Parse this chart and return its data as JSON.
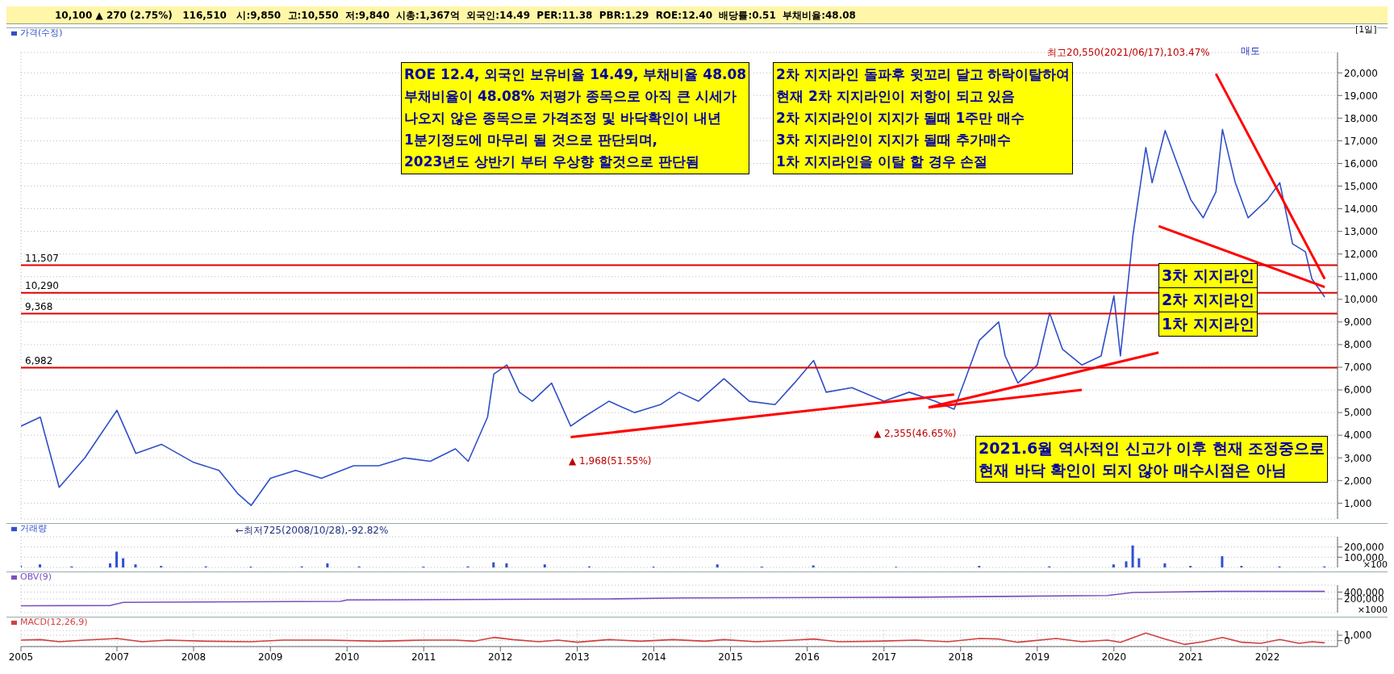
{
  "chart_data": [
    {
      "type": "line",
      "title": "10,100 ▲ 270 (2.75%)   116,510   시:9,850  고:10,550  저:9,840  시총:1,367억  외국인:14.49  PER:11.38  PBR:1.29  ROE:12.40  배당률:0.51  부채비율:48.08",
      "xlim": [
        "2005-10",
        "2022-12"
      ],
      "ylim": [
        300,
        20900
      ],
      "yticks": [
        {
          "value": 1000,
          "label": "1,000"
        },
        {
          "value": 2000,
          "label": "2,000"
        },
        {
          "value": 3000,
          "label": "3,000"
        },
        {
          "value": 4000,
          "label": "4,000"
        },
        {
          "value": 5000,
          "label": "5,000"
        },
        {
          "value": 6000,
          "label": "6,000"
        },
        {
          "value": 7000,
          "label": "7,000"
        },
        {
          "value": 8000,
          "label": "8,000"
        },
        {
          "value": 9000,
          "label": "9,000"
        },
        {
          "value": 10000,
          "label": "10,000"
        },
        {
          "value": 11000,
          "label": "11,000"
        },
        {
          "value": 12000,
          "label": "12,000"
        },
        {
          "value": 13000,
          "label": "13,000"
        },
        {
          "value": 14000,
          "label": "14,000"
        },
        {
          "value": 15000,
          "label": "15,000"
        },
        {
          "value": 16000,
          "label": "16,000"
        },
        {
          "value": 17000,
          "label": "17,000"
        },
        {
          "value": 18000,
          "label": "18,000"
        },
        {
          "value": 19000,
          "label": "19,000"
        },
        {
          "value": 20000,
          "label": "20,000"
        }
      ],
      "tick_labels": "y",
      "grid": true,
      "legend": "top left",
      "series": [
        {
          "name": "가격(수정)",
          "color": "#2f4fc8",
          "x": [
            "2005-10",
            "2006-01",
            "2006-04",
            "2006-08",
            "2007-01",
            "2007-04",
            "2007-08",
            "2008-01",
            "2008-05",
            "2008-08",
            "2008-10",
            "2009-01",
            "2009-05",
            "2009-09",
            "2010-02",
            "2010-06",
            "2010-10",
            "2011-02",
            "2011-06",
            "2011-08",
            "2011-11",
            "2011-12",
            "2012-02",
            "2012-04",
            "2012-06",
            "2012-09",
            "2012-12",
            "2013-02",
            "2013-06",
            "2013-10",
            "2014-02",
            "2014-05",
            "2014-08",
            "2014-12",
            "2015-04",
            "2015-08",
            "2015-11",
            "2016-02",
            "2016-04",
            "2016-08",
            "2017-01",
            "2017-05",
            "2017-09",
            "2017-12",
            "2018-02",
            "2018-04",
            "2018-07",
            "2018-08",
            "2018-10",
            "2019-01",
            "2019-03",
            "2019-05",
            "2019-08",
            "2019-11",
            "2020-01",
            "2020-02",
            "2020-04",
            "2020-06",
            "2020-07",
            "2020-09",
            "2020-11",
            "2021-01",
            "2021-03",
            "2021-05",
            "2021-06",
            "2021-08",
            "2021-10",
            "2022-01",
            "2022-03",
            "2022-05",
            "2022-07",
            "2022-08",
            "2022-10"
          ],
          "values": [
            4400,
            4800,
            1700,
            3000,
            5100,
            3200,
            3600,
            2800,
            2450,
            1400,
            900,
            2100,
            2450,
            2100,
            2650,
            2650,
            3000,
            2850,
            3400,
            2850,
            4800,
            6700,
            7100,
            5900,
            5500,
            6300,
            4400,
            4800,
            5500,
            5000,
            5350,
            5900,
            5500,
            6500,
            5500,
            5350,
            6300,
            7300,
            5900,
            6100,
            5500,
            5900,
            5500,
            5150,
            6700,
            8200,
            9000,
            7500,
            6300,
            7100,
            9400,
            7800,
            7100,
            7500,
            10150,
            7500,
            12850,
            16700,
            15150,
            17450,
            15900,
            14400,
            13600,
            14750,
            17500,
            15150,
            13600,
            14400,
            15150,
            12450,
            12100,
            10900,
            10100
          ]
        },
        {
          "type": "line",
          "color": "#ff0000",
          "x": [
            "2012-12",
            "2017-12"
          ],
          "values": [
            3920,
            5800
          ]
        },
        {
          "type": "line",
          "color": "#ff0000",
          "x": [
            "2017-08",
            "2020-08"
          ],
          "values": [
            5230,
            7650
          ]
        },
        {
          "type": "line",
          "color": "#ff0000",
          "x": [
            "2017-08",
            "2019-08"
          ],
          "values": [
            5230,
            6000
          ]
        },
        {
          "type": "line",
          "color": "#ff0000",
          "x": [
            "2021-05",
            "2022-10"
          ],
          "values": [
            19960,
            10900
          ]
        },
        {
          "type": "line",
          "color": "#ff0000",
          "x": [
            "2020-08",
            "2022-10"
          ],
          "values": [
            13230,
            10540
          ]
        }
      ],
      "ref_lines": [
        {
          "axis": "y",
          "value": 11507,
          "label": "11,507",
          "color": "#e00000"
        },
        {
          "axis": "y",
          "value": 10290,
          "label": "10,290",
          "color": "#e00000"
        },
        {
          "axis": "y",
          "value": 9368,
          "label": "9,368",
          "color": "#e00000"
        },
        {
          "axis": "y",
          "value": 6982,
          "label": "6,982",
          "color": "#e00000"
        }
      ],
      "annotations": [
        "[1일]",
        "ROE 12.4, 외국인 보유비율 14.49, 부채비율 48.08\n부채비율이 48.08% 저평가 종목으로 아직 큰 시세가\n나오지 않은 종목으로 가격조정 및 바닥확인이 내년\n1분기정도에 마무리 될 것으로 판단되며,\n2023년도 상반기 부터 우상향 할것으로 판단됨",
        "2차 지지라인 돌파후 윗꼬리 달고 하락이탈하여\n현재 2차 지지라인이 저항이 되고 있음\n2차 지지라인이 지지가 될때 1주만 매수\n3차 지지라인이 지지가 될때 추가매수\n1차 지지라인을 이탈 할 경우 손절",
        "3차 지지라인",
        "2차 지지라인",
        "1차 지지라인",
        "2021.6월 역사적인 신고가 이후 현재 조정중으로\n현재 바닥 확인이 되지 않아 매수시점은 아님",
        "최고20,550(2021/06/17),103.47%",
        "←최저725(2008/10/28),-92.82%",
        "▲ 1,968(51.55%)",
        "▲ 2,355(46.65%)",
        "매도"
      ]
    },
    {
      "type": "bar",
      "xlim": [
        "2005-10",
        "2022-12"
      ],
      "ylim": [
        0,
        300000
      ],
      "yticks": [
        {
          "value": 100000,
          "label": "100,000"
        },
        {
          "value": 200000,
          "label": "200,000"
        }
      ],
      "ylabel": "×100",
      "tick_labels": "y",
      "grid": true,
      "legend": "top left",
      "series": [
        {
          "name": "거래량",
          "color": "#3050d0",
          "x": [
            "2005-10",
            "2006-01",
            "2006-06",
            "2006-12",
            "2007-01",
            "2007-02",
            "2007-04",
            "2007-08",
            "2008-03",
            "2008-10",
            "2009-06",
            "2009-10",
            "2010-03",
            "2011-01",
            "2011-08",
            "2011-12",
            "2012-02",
            "2012-08",
            "2013-03",
            "2014-01",
            "2014-11",
            "2015-06",
            "2016-02",
            "2017-03",
            "2018-04",
            "2019-03",
            "2020-01",
            "2020-03",
            "2020-04",
            "2020-05",
            "2020-09",
            "2021-01",
            "2021-06",
            "2021-09",
            "2022-03",
            "2022-10"
          ],
          "values": [
            20000,
            30000,
            10000,
            40000,
            155000,
            90000,
            30000,
            15000,
            10000,
            8000,
            10000,
            40000,
            10000,
            8000,
            10000,
            50000,
            40000,
            30000,
            10000,
            8000,
            30000,
            8000,
            20000,
            6000,
            15000,
            10000,
            30000,
            60000,
            215000,
            90000,
            40000,
            15000,
            110000,
            15000,
            10000,
            10000
          ]
        }
      ]
    },
    {
      "type": "line",
      "xlim": [
        "2005-10",
        "2022-12"
      ],
      "ylim": [
        -200000,
        600000
      ],
      "yticks": [
        {
          "value": 200000,
          "label": "200,000"
        },
        {
          "value": 400000,
          "label": "400,000"
        }
      ],
      "ylabel": "×1000",
      "tick_labels": "y",
      "grid": true,
      "legend": "top left",
      "series": [
        {
          "name": "OBV(9)",
          "color": "#7a50c0",
          "x": [
            "2005-10",
            "2006-12",
            "2007-02",
            "2009-12",
            "2010-01",
            "2013-06",
            "2014-06",
            "2017-06",
            "2019-12",
            "2020-04",
            "2021-06",
            "2022-10"
          ],
          "values": [
            0,
            10000,
            100000,
            130000,
            170000,
            200000,
            230000,
            250000,
            300000,
            390000,
            420000,
            420000
          ]
        }
      ]
    },
    {
      "type": "line",
      "xlim": [
        "2005-10",
        "2022-12"
      ],
      "ylim": [
        -1100,
        1900
      ],
      "yticks": [
        0,
        {
          "value": 1000,
          "label": "1,000"
        }
      ],
      "grid": true,
      "legend": "top left",
      "xticks": [
        {
          "value": "2005-10",
          "label": "2005"
        },
        "2007",
        "2008",
        "2009",
        "2010",
        "2011",
        "2012",
        "2013",
        "2014",
        "2015",
        "2016",
        "2017",
        "2018",
        "2019",
        "2020",
        "2021",
        "2022"
      ],
      "series": [
        {
          "name": "MACD(12,26,9)",
          "color": "#d04040",
          "x": [
            "2005-10",
            "2006-01",
            "2006-04",
            "2006-08",
            "2007-01",
            "2007-05",
            "2007-09",
            "2008-03",
            "2008-10",
            "2009-03",
            "2009-10",
            "2010-06",
            "2011-01",
            "2011-06",
            "2011-09",
            "2011-12",
            "2012-03",
            "2012-07",
            "2012-10",
            "2013-01",
            "2013-06",
            "2013-11",
            "2014-04",
            "2014-09",
            "2014-12",
            "2015-05",
            "2015-11",
            "2016-02",
            "2016-06",
            "2016-12",
            "2017-06",
            "2017-11",
            "2018-04",
            "2018-07",
            "2018-10",
            "2019-04",
            "2019-08",
            "2019-12",
            "2020-02",
            "2020-06",
            "2020-09",
            "2020-12",
            "2021-03",
            "2021-06",
            "2021-09",
            "2021-12",
            "2022-03",
            "2022-06",
            "2022-08",
            "2022-10"
          ],
          "values": [
            100,
            200,
            -200,
            100,
            400,
            -200,
            100,
            -100,
            -200,
            100,
            100,
            -100,
            100,
            100,
            -100,
            600,
            200,
            -200,
            100,
            -300,
            200,
            -100,
            200,
            -100,
            200,
            -200,
            100,
            300,
            -200,
            -100,
            100,
            -200,
            400,
            300,
            -300,
            400,
            -200,
            100,
            -300,
            1400,
            300,
            -700,
            -200,
            600,
            -300,
            -500,
            200,
            -500,
            -200,
            -400
          ]
        }
      ]
    }
  ]
}
